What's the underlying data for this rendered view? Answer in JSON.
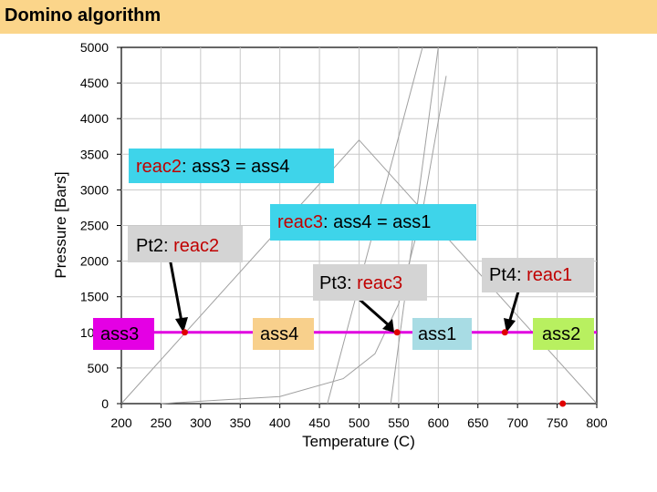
{
  "page": {
    "title": "Domino algorithm"
  },
  "colors": {
    "title_bg": "#fbd58a",
    "isobar": "#e000e0",
    "point": "#e00000",
    "grid": "#c8c8c8",
    "boundary": "#a0a0a0",
    "label_cyan": "#3ed4ea",
    "label_gray": "#d4d4d4",
    "ass3_bg": "#e400e4",
    "ass4_bg": "#f8d08c",
    "ass1_bg": "#a8dce4",
    "ass2_bg": "#b8f060"
  },
  "labels": {
    "reac2_eq": {
      "name": "reac2",
      "rest": ": ass3 = ass4"
    },
    "reac3_eq": {
      "name": "reac3",
      "rest": ": ass4 = ass1"
    },
    "pt2": {
      "prefix": "Pt2: ",
      "name": "reac2"
    },
    "pt3": {
      "prefix": "Pt3: ",
      "name": "reac3"
    },
    "pt4": {
      "prefix": "Pt4: ",
      "name": "reac1"
    },
    "ass3": "ass3",
    "ass4": "ass4",
    "ass1": "ass1",
    "ass2": "ass2"
  },
  "chart_data": {
    "type": "line",
    "xlabel": "Temperature (C)",
    "ylabel": "Pressure [Bars]",
    "xlim": [
      200,
      800
    ],
    "ylim": [
      0,
      5000
    ],
    "x_ticks": [
      200,
      250,
      300,
      350,
      400,
      450,
      500,
      550,
      600,
      650,
      700,
      750,
      800
    ],
    "y_ticks": [
      0,
      500,
      1000,
      1500,
      2000,
      2500,
      3000,
      3500,
      4000,
      4500,
      5000
    ],
    "grid": true,
    "isobar_pressure": 1000,
    "series": [
      {
        "x": [
          200,
          500
        ],
        "y": [
          0,
          3700
        ]
      },
      {
        "x": [
          500,
          800
        ],
        "y": [
          3700,
          0
        ]
      },
      {
        "x": [
          460,
          580
        ],
        "y": [
          0,
          5000
        ]
      },
      {
        "x": [
          540,
          600
        ],
        "y": [
          0,
          5000
        ]
      },
      {
        "x": [
          250,
          400,
          480,
          520,
          550,
          580,
          610
        ],
        "y": [
          0,
          100,
          350,
          700,
          1400,
          2700,
          4600
        ]
      }
    ],
    "points": [
      {
        "label": "Pt2",
        "x": 280,
        "y": 1000
      },
      {
        "label": "Pt3",
        "x": 548,
        "y": 1000
      },
      {
        "label": "Pt4",
        "x": 684,
        "y": 1000
      },
      {
        "label": "",
        "x": 757,
        "y": 0
      }
    ]
  }
}
